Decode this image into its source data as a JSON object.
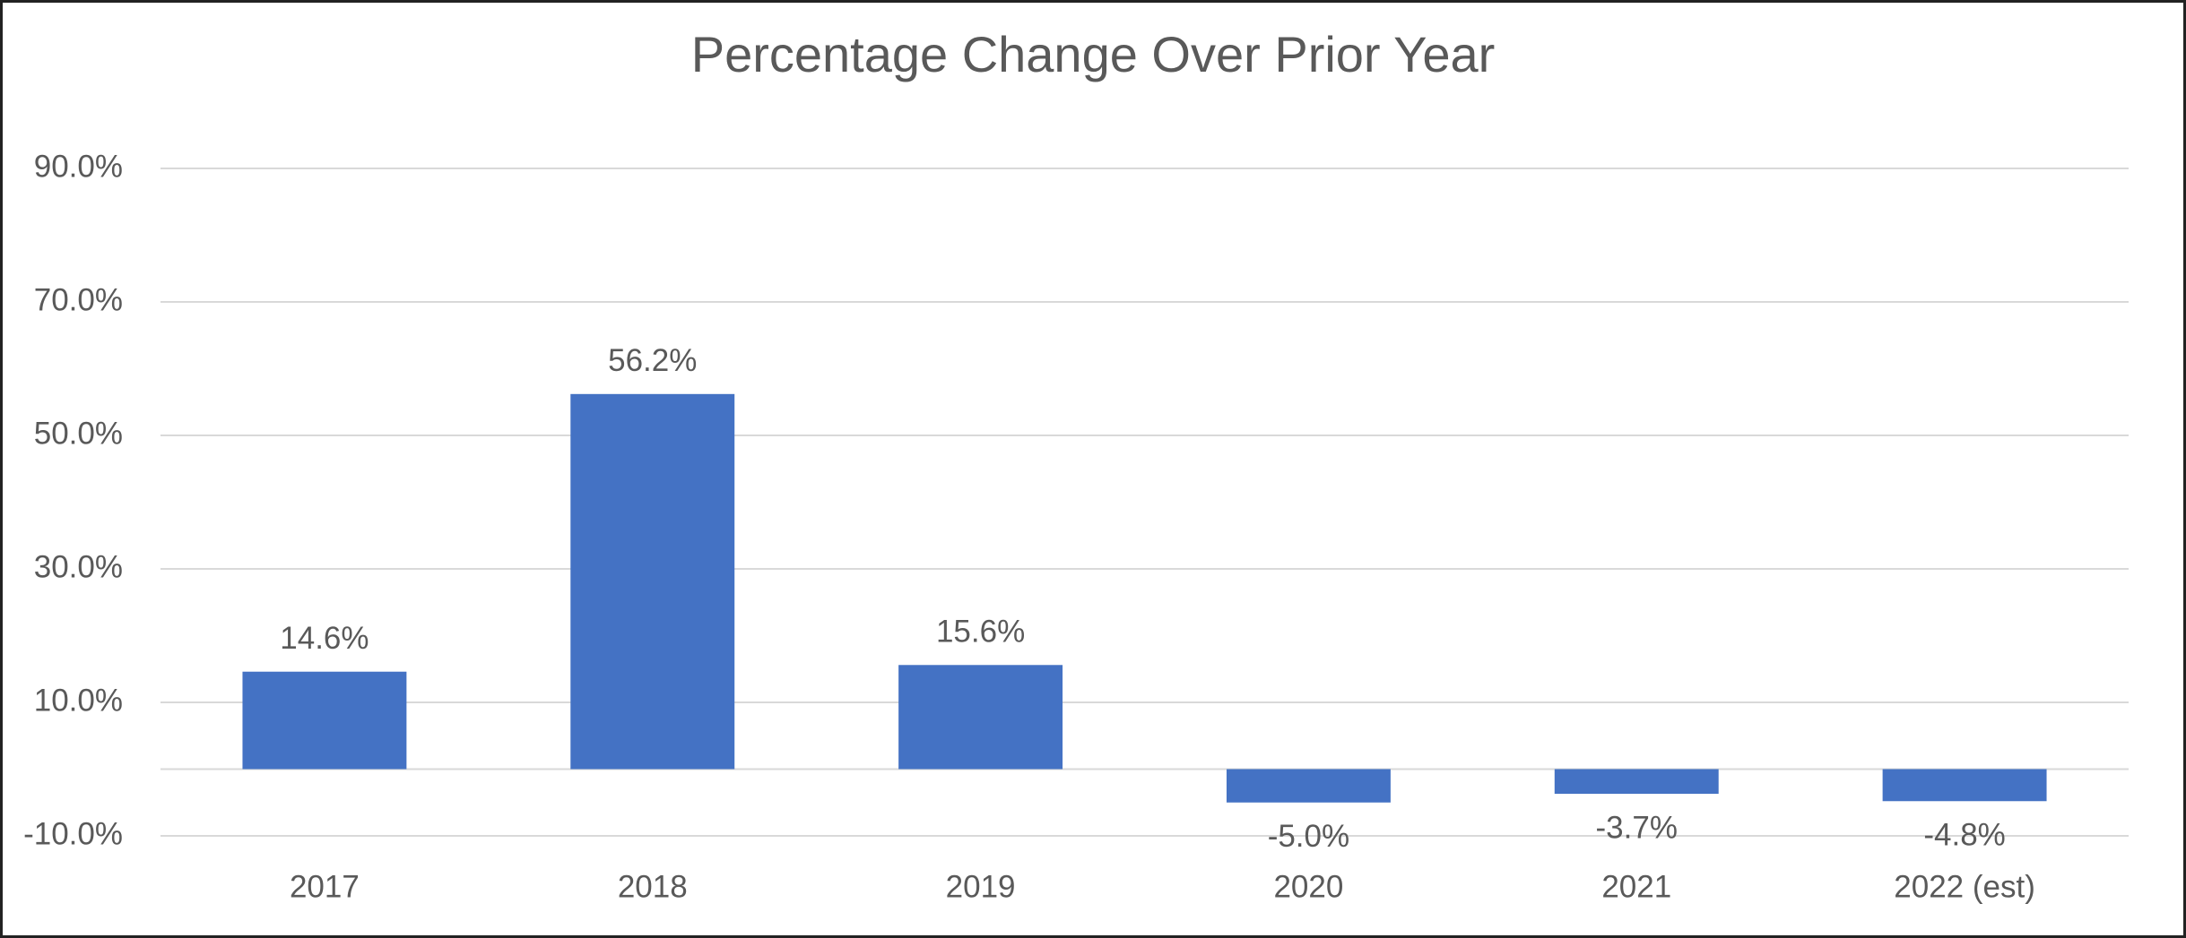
{
  "chart_data": {
    "type": "bar",
    "title": "Percentage Change Over Prior Year",
    "categories": [
      "2017",
      "2018",
      "2019",
      "2020",
      "2021",
      "2022 (est)"
    ],
    "values": [
      14.6,
      56.2,
      15.6,
      -5.0,
      -3.7,
      -4.8
    ],
    "value_labels": [
      "14.6%",
      "56.2%",
      "15.6%",
      "-5.0%",
      "-3.7%",
      "-4.8%"
    ],
    "color": "#4472c4",
    "ylim": [
      -10,
      90
    ],
    "yticks": [
      {
        "value": -10,
        "label": "-10.0%"
      },
      {
        "value": 10,
        "label": "10.0%"
      },
      {
        "value": 30,
        "label": "30.0%"
      },
      {
        "value": 50,
        "label": "50.0%"
      },
      {
        "value": 70,
        "label": "70.0%"
      },
      {
        "value": 90,
        "label": "90.0%"
      }
    ],
    "grid": true
  }
}
